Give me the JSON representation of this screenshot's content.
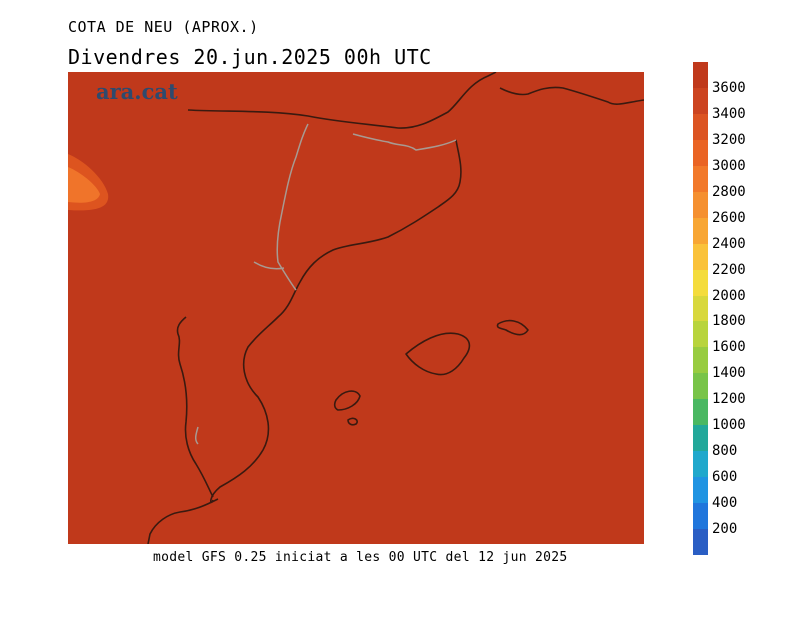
{
  "header": {
    "title": "COTA DE NEU (APROX.)",
    "subtitle": "Divendres  20.jun.2025 00h UTC"
  },
  "brand": {
    "logo_text": "ara.cat"
  },
  "footer": {
    "model_text": "model GFS 0.25 iniciat a les 00 UTC del 12 jun 2025"
  },
  "map": {
    "field_color": "#c0391b",
    "patch_colors": [
      "#dd541f",
      "#f0742a"
    ],
    "coast_color": "#3a1a10",
    "border_color": "#a89a92"
  },
  "legend": {
    "labels": [
      "3600",
      "3400",
      "3200",
      "3000",
      "2800",
      "2600",
      "2400",
      "2200",
      "2000",
      "1800",
      "1600",
      "1400",
      "1200",
      "1000",
      "800",
      "600",
      "400",
      "200"
    ],
    "colors": [
      "#c0391b",
      "#cc4420",
      "#dc5422",
      "#ea6424",
      "#f2792a",
      "#f59030",
      "#f8a634",
      "#fac23a",
      "#f4dc3c",
      "#d8d83c",
      "#b8d43c",
      "#98cc40",
      "#78c448",
      "#4ab862",
      "#22a89a",
      "#20a8cc",
      "#2094e2",
      "#2076dc",
      "#2a5ec4"
    ]
  }
}
